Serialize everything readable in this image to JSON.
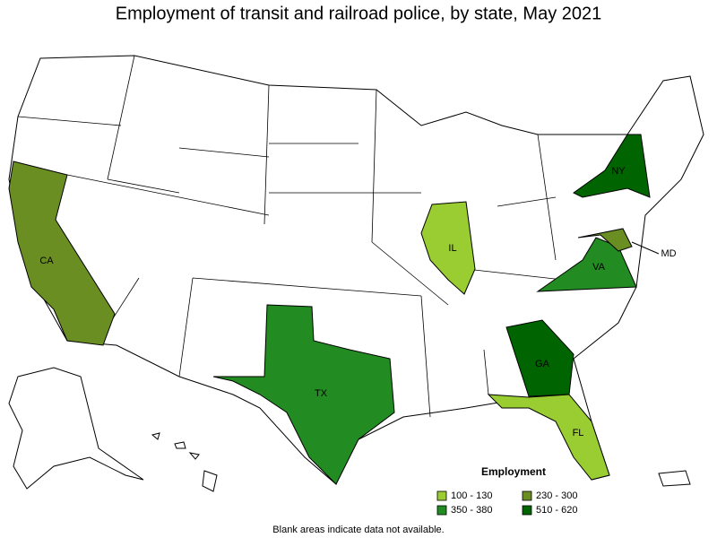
{
  "title": "Employment of transit and railroad police, by state, May 2021",
  "states": [
    {
      "label": "CA",
      "color": "#6b8e23"
    },
    {
      "label": "TX",
      "color": "#228b22"
    },
    {
      "label": "IL",
      "color": "#9acd32"
    },
    {
      "label": "VA",
      "color": "#228b22"
    },
    {
      "label": "MD",
      "color": "#6b8e23"
    },
    {
      "label": "NY",
      "color": "#006400"
    },
    {
      "label": "GA",
      "color": "#006400"
    },
    {
      "label": "FL",
      "color": "#9acd32"
    }
  ],
  "legend": {
    "title": "Employment",
    "items": [
      {
        "label": "100 - 130",
        "color": "#9acd32"
      },
      {
        "label": "230 - 300",
        "color": "#6b8e23"
      },
      {
        "label": "350 - 380",
        "color": "#228b22"
      },
      {
        "label": "510 - 620",
        "color": "#006400"
      }
    ]
  },
  "note": "Blank areas indicate data not available."
}
